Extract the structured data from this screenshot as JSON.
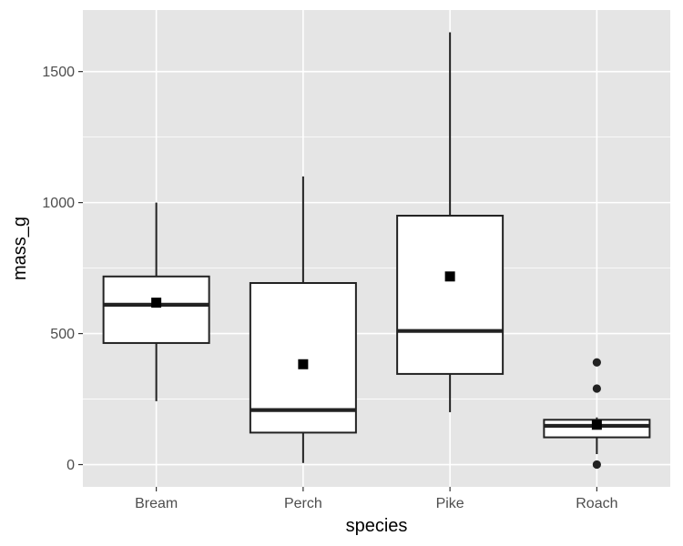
{
  "chart_data": {
    "type": "boxplot",
    "title": "",
    "xlabel": "species",
    "ylabel": "mass_g",
    "ylim": [
      -85,
      1735
    ],
    "yticks": [
      0,
      500,
      1000,
      1500
    ],
    "grid": true,
    "categories": [
      "Bream",
      "Perch",
      "Pike",
      "Roach"
    ],
    "boxes": [
      {
        "category": "Bream",
        "lower_whisker": 242,
        "q1": 464,
        "median": 610,
        "q3": 718,
        "upper_whisker": 1000,
        "mean": 618,
        "outliers": []
      },
      {
        "category": "Perch",
        "lower_whisker": 6,
        "q1": 122,
        "median": 208,
        "q3": 693,
        "upper_whisker": 1100,
        "mean": 383,
        "outliers": []
      },
      {
        "category": "Pike",
        "lower_whisker": 200,
        "q1": 346,
        "median": 510,
        "q3": 950,
        "upper_whisker": 1650,
        "mean": 718,
        "outliers": []
      },
      {
        "category": "Roach",
        "lower_whisker": 40,
        "q1": 104,
        "median": 148,
        "q3": 171,
        "upper_whisker": 180,
        "mean": 152,
        "outliers": [
          0,
          290,
          390
        ]
      }
    ],
    "colors": {
      "panel": "#e5e5e5",
      "grid": "#ffffff",
      "box_fill": "#ffffff",
      "box_line": "#222222",
      "mean_marker": "#000000",
      "tick_label": "#4d4d4d",
      "axis_title": "#000000"
    }
  }
}
